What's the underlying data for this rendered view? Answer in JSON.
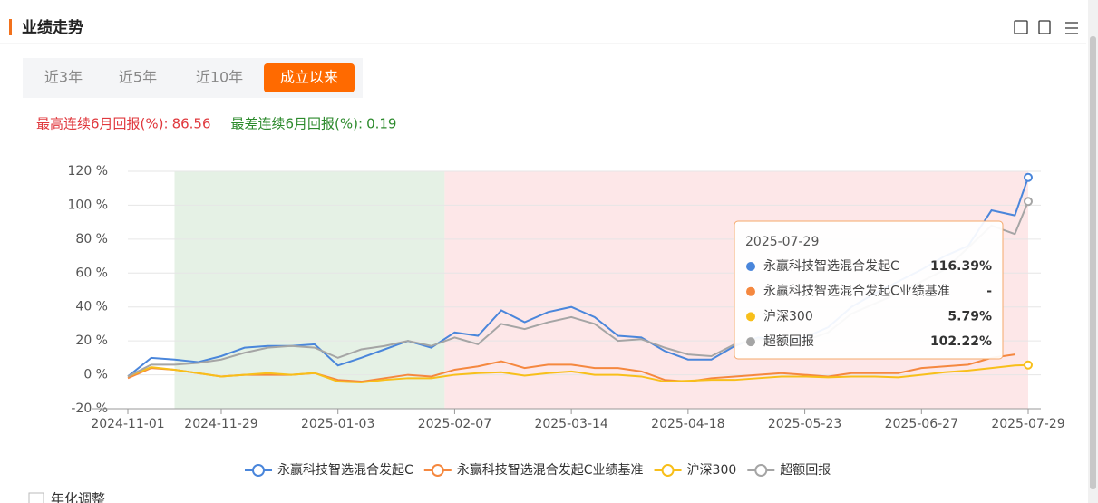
{
  "header": {
    "title": "业绩走势"
  },
  "tabs": {
    "items": [
      "近3年",
      "近5年",
      "近10年",
      "成立以来"
    ],
    "active": 3
  },
  "stats": {
    "best": {
      "label": "最高连续6月回报(%):",
      "value": 86.56
    },
    "worst": {
      "label": "最差连续6月回报(%):",
      "value": 0.19
    }
  },
  "chart_data": {
    "type": "line",
    "x": [
      "2024-11-01",
      "2024-11-08",
      "2024-11-15",
      "2024-11-22",
      "2024-11-29",
      "2024-12-06",
      "2024-12-13",
      "2024-12-20",
      "2024-12-27",
      "2025-01-03",
      "2025-01-10",
      "2025-01-17",
      "2025-01-24",
      "2025-01-31",
      "2025-02-07",
      "2025-02-14",
      "2025-02-21",
      "2025-02-28",
      "2025-03-07",
      "2025-03-14",
      "2025-03-21",
      "2025-03-28",
      "2025-04-04",
      "2025-04-11",
      "2025-04-18",
      "2025-04-25",
      "2025-05-02",
      "2025-05-09",
      "2025-05-16",
      "2025-05-23",
      "2025-05-30",
      "2025-06-06",
      "2025-06-13",
      "2025-06-20",
      "2025-06-27",
      "2025-07-04",
      "2025-07-11",
      "2025-07-18",
      "2025-07-25",
      "2025-07-29"
    ],
    "series": [
      {
        "name": "永赢科技智选混合发起C",
        "color": "#4a86db",
        "values": [
          -1,
          10,
          9,
          7.5,
          11,
          16,
          17,
          17,
          18,
          5.5,
          10,
          15,
          20,
          16,
          25,
          23,
          38,
          31,
          37,
          40,
          34,
          23,
          22,
          14,
          9,
          9,
          17,
          22,
          20,
          22,
          28,
          40,
          48,
          55,
          62,
          70,
          76,
          97,
          94,
          116.39
        ]
      },
      {
        "name": "永赢科技智选混合发起C业绩基准",
        "color": "#f5883f",
        "values": [
          -2,
          4,
          3,
          1,
          -1,
          0,
          0,
          0,
          1,
          -3,
          -4,
          -2,
          0,
          -1,
          3,
          5,
          8,
          4,
          6,
          6,
          4,
          4,
          2,
          -3,
          -4,
          -2,
          -1,
          0,
          1,
          0,
          -1,
          1,
          1,
          1,
          4,
          5,
          6,
          10,
          12,
          null
        ]
      },
      {
        "name": "沪深300",
        "color": "#f8bf1a",
        "values": [
          -1,
          4.5,
          3,
          1,
          -1,
          0,
          1,
          0,
          1,
          -4,
          -4.5,
          -3,
          -2,
          -2,
          0,
          1,
          1.5,
          -0.5,
          1,
          2,
          0,
          0,
          -1,
          -4,
          -3.5,
          -3,
          -3,
          -2,
          -1,
          -1,
          -1.5,
          -1,
          -1,
          -1.5,
          0,
          1.5,
          2.5,
          4,
          5.5,
          5.79
        ]
      },
      {
        "name": "超额回报",
        "color": "#a5a5a5",
        "values": [
          -1,
          6,
          6,
          7,
          9,
          13,
          16,
          17,
          16,
          10,
          15,
          17,
          20,
          17,
          22,
          18,
          30,
          27,
          31,
          34,
          30,
          20,
          21,
          16,
          12,
          11,
          18,
          21,
          20,
          20,
          25,
          36,
          42,
          48,
          55,
          62,
          75,
          88,
          83,
          102.22
        ]
      }
    ],
    "xlim": [
      "2024-11-01",
      "2025-07-29"
    ],
    "xticks": [
      "2024-11-01",
      "2024-11-29",
      "2025-01-03",
      "2025-02-07",
      "2025-03-14",
      "2025-04-18",
      "2025-05-23",
      "2025-06-27",
      "2025-07-29"
    ],
    "ylim": [
      -20,
      120
    ],
    "yticks": [
      {
        "value": -20,
        "label": "-20 %"
      },
      {
        "value": 0,
        "label": "0 %"
      },
      {
        "value": 20,
        "label": "20 %"
      },
      {
        "value": 40,
        "label": "40 %"
      },
      {
        "value": 60,
        "label": "60 %"
      },
      {
        "value": 80,
        "label": "80 %"
      },
      {
        "value": 100,
        "label": "100 %"
      },
      {
        "value": 120,
        "label": "120 %"
      }
    ],
    "grid": true,
    "bands": [
      {
        "start": "2024-11-15",
        "end": "2025-02-04",
        "color": "#e5f1e5"
      },
      {
        "start": "2025-02-04",
        "end": "2025-07-29",
        "color": "#fde7e8"
      }
    ],
    "tooltip": {
      "x": "2025-07-29",
      "values": [
        116.39,
        null,
        5.79,
        102.22
      ],
      "value_labels": [
        "116.39%",
        "-",
        "5.79%",
        "102.22%"
      ]
    }
  },
  "footer": {
    "checkbox": "年化调整"
  }
}
